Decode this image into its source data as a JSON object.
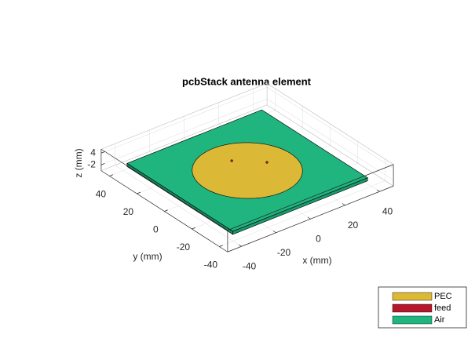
{
  "chart_data": {
    "type": "pcb3d",
    "title": "pcbStack antenna element",
    "xlabel": "x (mm)",
    "ylabel": "y (mm)",
    "zlabel": "z (mm)",
    "xlim": [
      -48,
      48
    ],
    "ylim": [
      -46,
      46
    ],
    "zlim": [
      -5,
      6
    ],
    "xticks": [
      -40,
      -20,
      0,
      20,
      40
    ],
    "yticks": [
      -40,
      -20,
      0,
      20,
      40
    ],
    "zticks": [
      -2,
      4
    ],
    "grid": true,
    "legend": [
      {
        "name": "PEC",
        "color": "#dbb836"
      },
      {
        "name": "feed",
        "color": "#b5172b"
      },
      {
        "name": "Air",
        "color": "#20b47f"
      }
    ]
  }
}
